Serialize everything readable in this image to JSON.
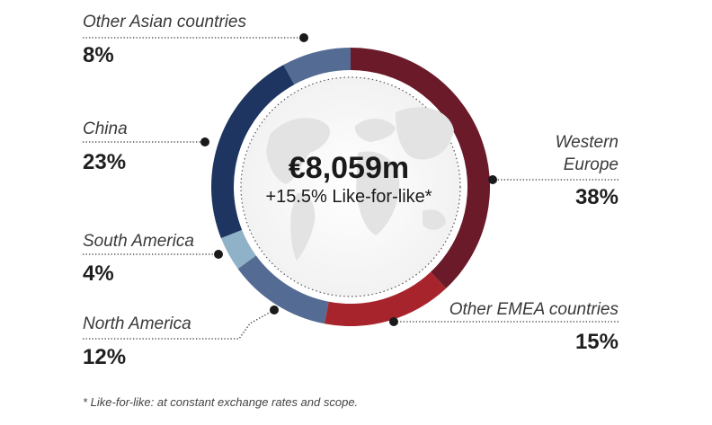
{
  "chart_data": {
    "type": "pie",
    "center_value": "€8,059m",
    "center_subtitle": "+15.5% Like-for-like*",
    "footnote": "* Like-for-like: at constant exchange rates and scope.",
    "slices": [
      {
        "name": "Western Europe",
        "name_lines": [
          "Western",
          "Europe"
        ],
        "value": 38,
        "label": "38%",
        "color": "#6b1a2a"
      },
      {
        "name": "Other EMEA countries",
        "value": 15,
        "label": "15%",
        "color": "#a8242d"
      },
      {
        "name": "North America",
        "value": 12,
        "label": "12%",
        "color": "#546b93"
      },
      {
        "name": "South America",
        "value": 4,
        "label": "4%",
        "color": "#8fb2c9"
      },
      {
        "name": "China",
        "value": 23,
        "label": "23%",
        "color": "#1d3560"
      },
      {
        "name": "Other Asian countries",
        "value": 8,
        "label": "8%",
        "color": "#546b93"
      }
    ]
  }
}
